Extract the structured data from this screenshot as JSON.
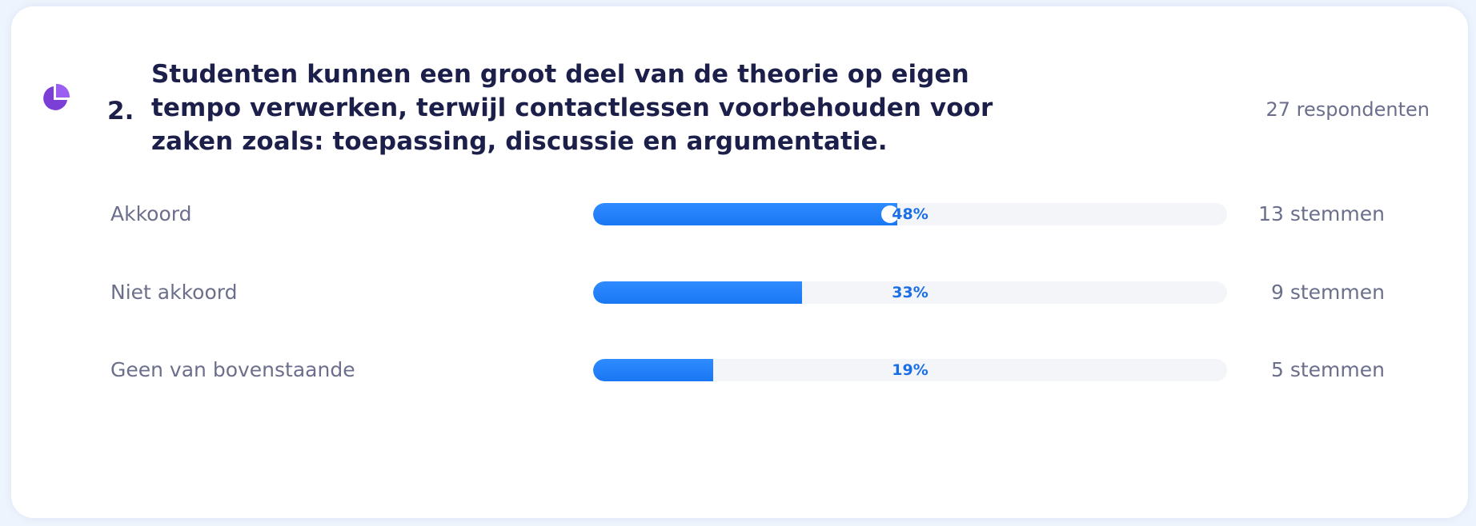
{
  "question": {
    "number": "2.",
    "title": "Studenten kunnen een groot deel van de theorie op eigen tempo verwerken, terwijl contactlessen voorbehouden voor zaken zoals: toepassing, discussie en argumentatie.",
    "respondents": "27 respondenten",
    "icon": "pie-chart-icon",
    "accent_color": "#7b3fd6"
  },
  "options": [
    {
      "label": "Akkoord",
      "percent_label": "48%",
      "percent": 48,
      "votes": "13 stemmen"
    },
    {
      "label": "Niet akkoord",
      "percent_label": "33%",
      "percent": 33,
      "votes": "9 stemmen"
    },
    {
      "label": "Geen van bovenstaande",
      "percent_label": "19%",
      "percent": 19,
      "votes": "5 stemmen"
    }
  ],
  "colors": {
    "bar_fill": "#1977f3",
    "bar_track": "#f3f5f9",
    "title": "#1c1f4a",
    "muted_text": "#6b6f8c"
  }
}
